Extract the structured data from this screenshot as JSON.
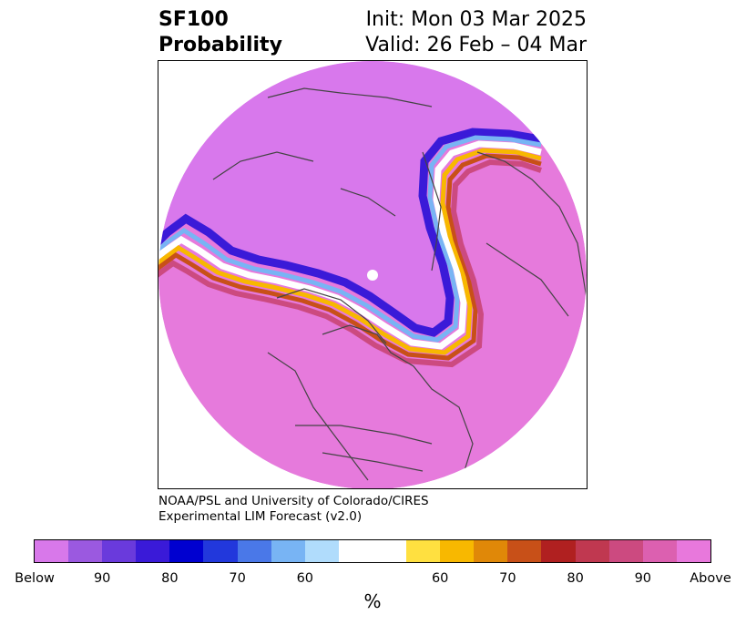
{
  "title": {
    "line1_left": "SF100",
    "line2_left": "Probability",
    "line1_right": "Init: Mon 03 Mar 2025",
    "line2_right": "Valid: 26 Feb – 04 Mar"
  },
  "credit": {
    "line1": "NOAA/PSL and University of Colorado/CIRES",
    "line2": "Experimental LIM Forecast (v2.0)"
  },
  "colorbar": {
    "colors": [
      "#d878ea",
      "#9b59e0",
      "#6a3adc",
      "#3a1ad8",
      "#0000d0",
      "#2238dc",
      "#4a78e8",
      "#78b4f4",
      "#b0dcfc",
      "#ffffff",
      "#ffffff",
      "#ffe040",
      "#f8b800",
      "#e08808",
      "#c85018",
      "#b02020",
      "#c03850",
      "#cc4a80",
      "#dc60b0",
      "#e878dc"
    ],
    "tick_labels": [
      "Below",
      "90",
      "80",
      "70",
      "60",
      "60",
      "70",
      "80",
      "90",
      "Above"
    ],
    "units": "%"
  },
  "map": {
    "below_color": "#d878ec",
    "above_color": "#e67adc"
  }
}
